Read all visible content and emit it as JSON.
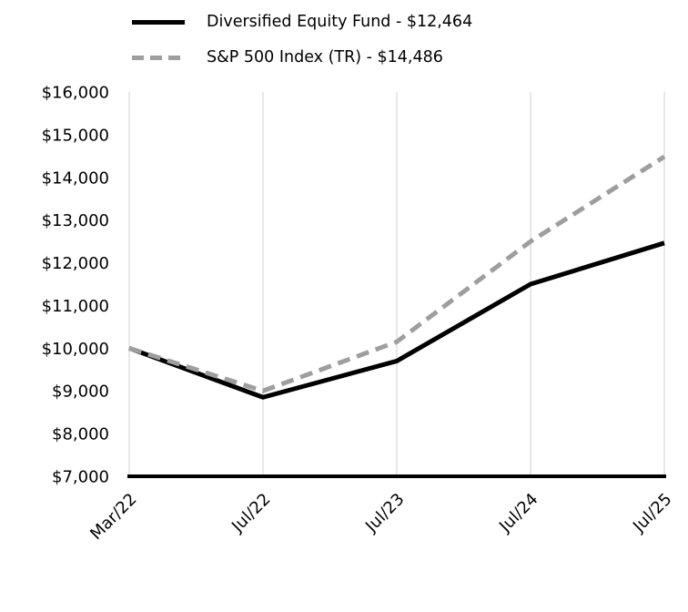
{
  "chart_data": {
    "type": "line",
    "title": "",
    "xlabel": "",
    "ylabel": "",
    "x": [
      "Mar/22",
      "Jul/22",
      "Jul/23",
      "Jul/24",
      "Jul/25"
    ],
    "series": [
      {
        "name": "Diversified Equity Fund - $12,464",
        "color": "#000000",
        "style": "solid",
        "final_value": 12464,
        "values": [
          10000,
          8850,
          9700,
          11500,
          12464
        ]
      },
      {
        "name": "S&P 500 Index (TR) - $14,486",
        "color": "#9e9e9e",
        "style": "dashed",
        "final_value": 14486,
        "values": [
          10000,
          9000,
          10150,
          12500,
          14486
        ]
      }
    ],
    "ylim": [
      7000,
      16000
    ],
    "ytick_step": 1000,
    "ytick_labels": [
      "$7,000",
      "$8,000",
      "$9,000",
      "$10,000",
      "$11,000",
      "$12,000",
      "$13,000",
      "$14,000",
      "$15,000",
      "$16,000"
    ],
    "grid": "vertical",
    "grid_color": "#d9d9d9",
    "axis_color": "#000000",
    "legend_position": "top-left"
  }
}
